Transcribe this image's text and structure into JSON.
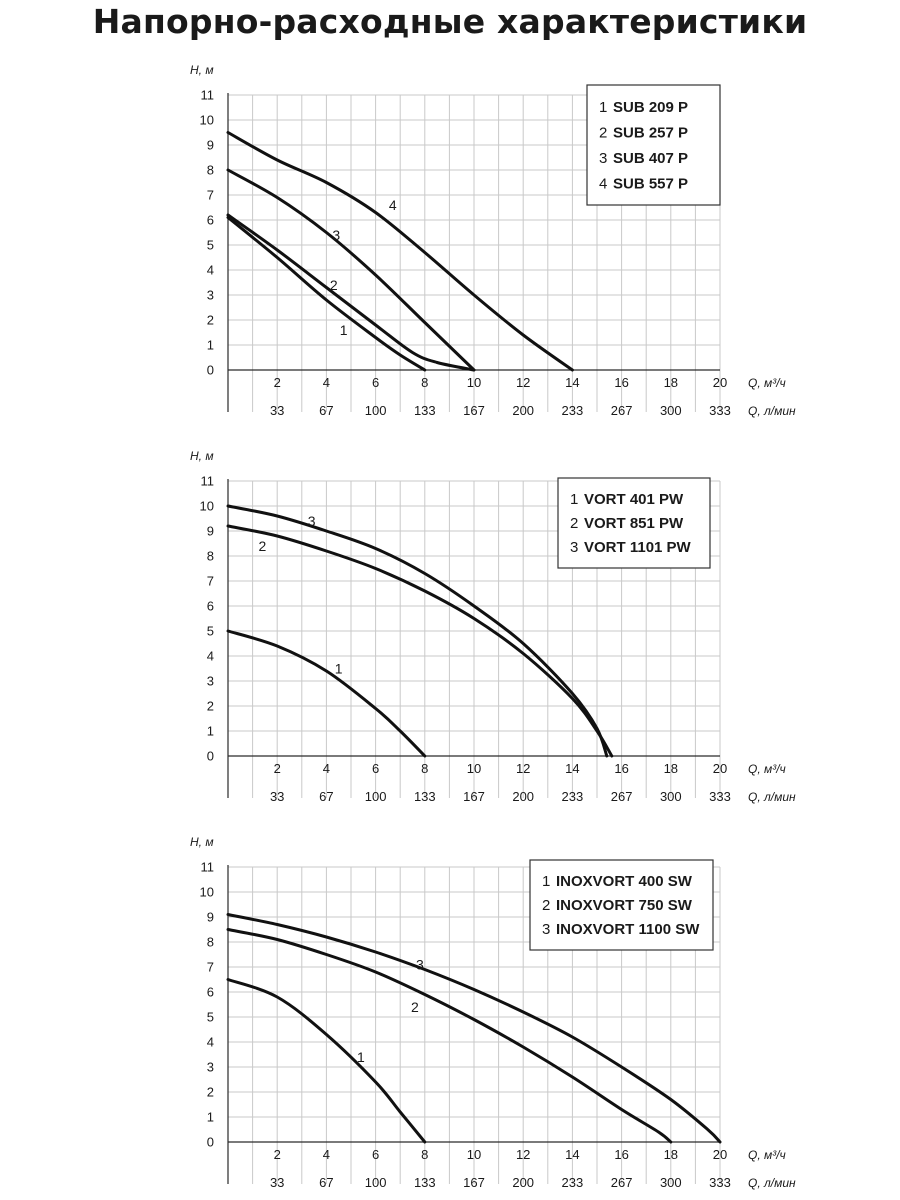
{
  "title": "Напорно-расходные характеристики",
  "chart_data": [
    {
      "type": "line",
      "ylabel": "H, м",
      "xlabel": "Q, м³/ч",
      "x2label": "Q, л/мин",
      "xlim": [
        0,
        20
      ],
      "ylim": [
        0,
        11
      ],
      "xticks": [
        "2",
        "4",
        "6",
        "8",
        "10",
        "12",
        "14",
        "16",
        "18",
        "20"
      ],
      "x2ticks": [
        "33",
        "67",
        "100",
        "133",
        "167",
        "200",
        "233",
        "267",
        "300",
        "333"
      ],
      "yticks": [
        "0",
        "1",
        "2",
        "3",
        "4",
        "5",
        "6",
        "7",
        "8",
        "9",
        "10",
        "11"
      ],
      "legend": [
        {
          "num": "1",
          "name": "SUB 209 P"
        },
        {
          "num": "2",
          "name": "SUB 257 P"
        },
        {
          "num": "3",
          "name": "SUB 407 P"
        },
        {
          "num": "4",
          "name": "SUB 557 P"
        }
      ],
      "series": [
        {
          "name": "1",
          "x": [
            0,
            2,
            4,
            6,
            7,
            8
          ],
          "y": [
            6.1,
            4.5,
            2.8,
            1.3,
            0.6,
            0
          ],
          "label": {
            "text": "1",
            "x": 4.7,
            "y": 1.6
          }
        },
        {
          "name": "2",
          "x": [
            0,
            2,
            4,
            6,
            7.5,
            8.5,
            10
          ],
          "y": [
            6.2,
            4.8,
            3.3,
            1.8,
            0.7,
            0.3,
            0
          ],
          "label": {
            "text": "2",
            "x": 4.3,
            "y": 3.4
          }
        },
        {
          "name": "3",
          "x": [
            0,
            2,
            4,
            6,
            8,
            10
          ],
          "y": [
            8.0,
            6.9,
            5.5,
            3.8,
            1.9,
            0
          ],
          "label": {
            "text": "3",
            "x": 4.4,
            "y": 5.4
          }
        },
        {
          "name": "4",
          "x": [
            0,
            2,
            4,
            6,
            8,
            10,
            12,
            14
          ],
          "y": [
            9.5,
            8.4,
            7.5,
            6.3,
            4.7,
            3.0,
            1.4,
            0
          ],
          "label": {
            "text": "4",
            "x": 6.7,
            "y": 6.6
          }
        }
      ]
    },
    {
      "type": "line",
      "ylabel": "H, м",
      "xlabel": "Q, м³/ч",
      "x2label": "Q, л/мин",
      "xlim": [
        0,
        20
      ],
      "ylim": [
        0,
        11
      ],
      "xticks": [
        "2",
        "4",
        "6",
        "8",
        "10",
        "12",
        "14",
        "16",
        "18",
        "20"
      ],
      "x2ticks": [
        "33",
        "67",
        "100",
        "133",
        "167",
        "200",
        "233",
        "267",
        "300",
        "333"
      ],
      "yticks": [
        "0",
        "1",
        "2",
        "3",
        "4",
        "5",
        "6",
        "7",
        "8",
        "9",
        "10",
        "11"
      ],
      "legend": [
        {
          "num": "1",
          "name": "VORT 401 PW"
        },
        {
          "num": "2",
          "name": "VORT 851 PW"
        },
        {
          "num": "3",
          "name": "VORT 1101 PW"
        }
      ],
      "series": [
        {
          "name": "1",
          "x": [
            0,
            2,
            4,
            6,
            7,
            8
          ],
          "y": [
            5.0,
            4.4,
            3.4,
            1.9,
            1.0,
            0
          ],
          "label": {
            "text": "1",
            "x": 4.5,
            "y": 3.5
          }
        },
        {
          "name": "2",
          "x": [
            0,
            2,
            4,
            6,
            8,
            10,
            12,
            14,
            15,
            15.6
          ],
          "y": [
            9.2,
            8.8,
            8.2,
            7.5,
            6.6,
            5.5,
            4.1,
            2.3,
            1.0,
            0
          ],
          "label": {
            "text": "2",
            "x": 1.4,
            "y": 8.4
          }
        },
        {
          "name": "3",
          "x": [
            0,
            2,
            4,
            6,
            8,
            10,
            12,
            14,
            15,
            15.4
          ],
          "y": [
            10.0,
            9.6,
            9.0,
            8.3,
            7.3,
            6.0,
            4.5,
            2.5,
            1.1,
            0
          ],
          "label": {
            "text": "3",
            "x": 3.4,
            "y": 9.4
          }
        }
      ]
    },
    {
      "type": "line",
      "ylabel": "H, м",
      "xlabel": "Q, м³/ч",
      "x2label": "Q, л/мин",
      "xlim": [
        0,
        20
      ],
      "ylim": [
        0,
        11
      ],
      "xticks": [
        "2",
        "4",
        "6",
        "8",
        "10",
        "12",
        "14",
        "16",
        "18",
        "20"
      ],
      "x2ticks": [
        "33",
        "67",
        "100",
        "133",
        "167",
        "200",
        "233",
        "267",
        "300",
        "333"
      ],
      "yticks": [
        "0",
        "1",
        "2",
        "3",
        "4",
        "5",
        "6",
        "7",
        "8",
        "9",
        "10",
        "11"
      ],
      "legend": [
        {
          "num": "1",
          "name": "INOXVORT 400 SW"
        },
        {
          "num": "2",
          "name": "INOXVORT 750 SW"
        },
        {
          "num": "3",
          "name": "INOXVORT 1100 SW"
        }
      ],
      "series": [
        {
          "name": "1",
          "x": [
            0,
            2,
            4,
            6,
            7,
            8
          ],
          "y": [
            6.5,
            5.8,
            4.3,
            2.4,
            1.2,
            0
          ],
          "label": {
            "text": "1",
            "x": 5.4,
            "y": 3.4
          }
        },
        {
          "name": "2",
          "x": [
            0,
            2,
            4,
            6,
            8,
            10,
            12,
            14,
            16,
            17.5,
            18
          ],
          "y": [
            8.5,
            8.1,
            7.5,
            6.8,
            5.9,
            4.9,
            3.8,
            2.6,
            1.3,
            0.4,
            0
          ],
          "label": {
            "text": "2",
            "x": 7.6,
            "y": 5.4
          }
        },
        {
          "name": "3",
          "x": [
            0,
            2,
            4,
            6,
            8,
            10,
            12,
            14,
            16,
            18,
            19.5,
            20
          ],
          "y": [
            9.1,
            8.7,
            8.2,
            7.6,
            6.9,
            6.1,
            5.2,
            4.2,
            3.0,
            1.7,
            0.5,
            0
          ],
          "label": {
            "text": "3",
            "x": 7.8,
            "y": 7.1
          }
        }
      ]
    }
  ]
}
